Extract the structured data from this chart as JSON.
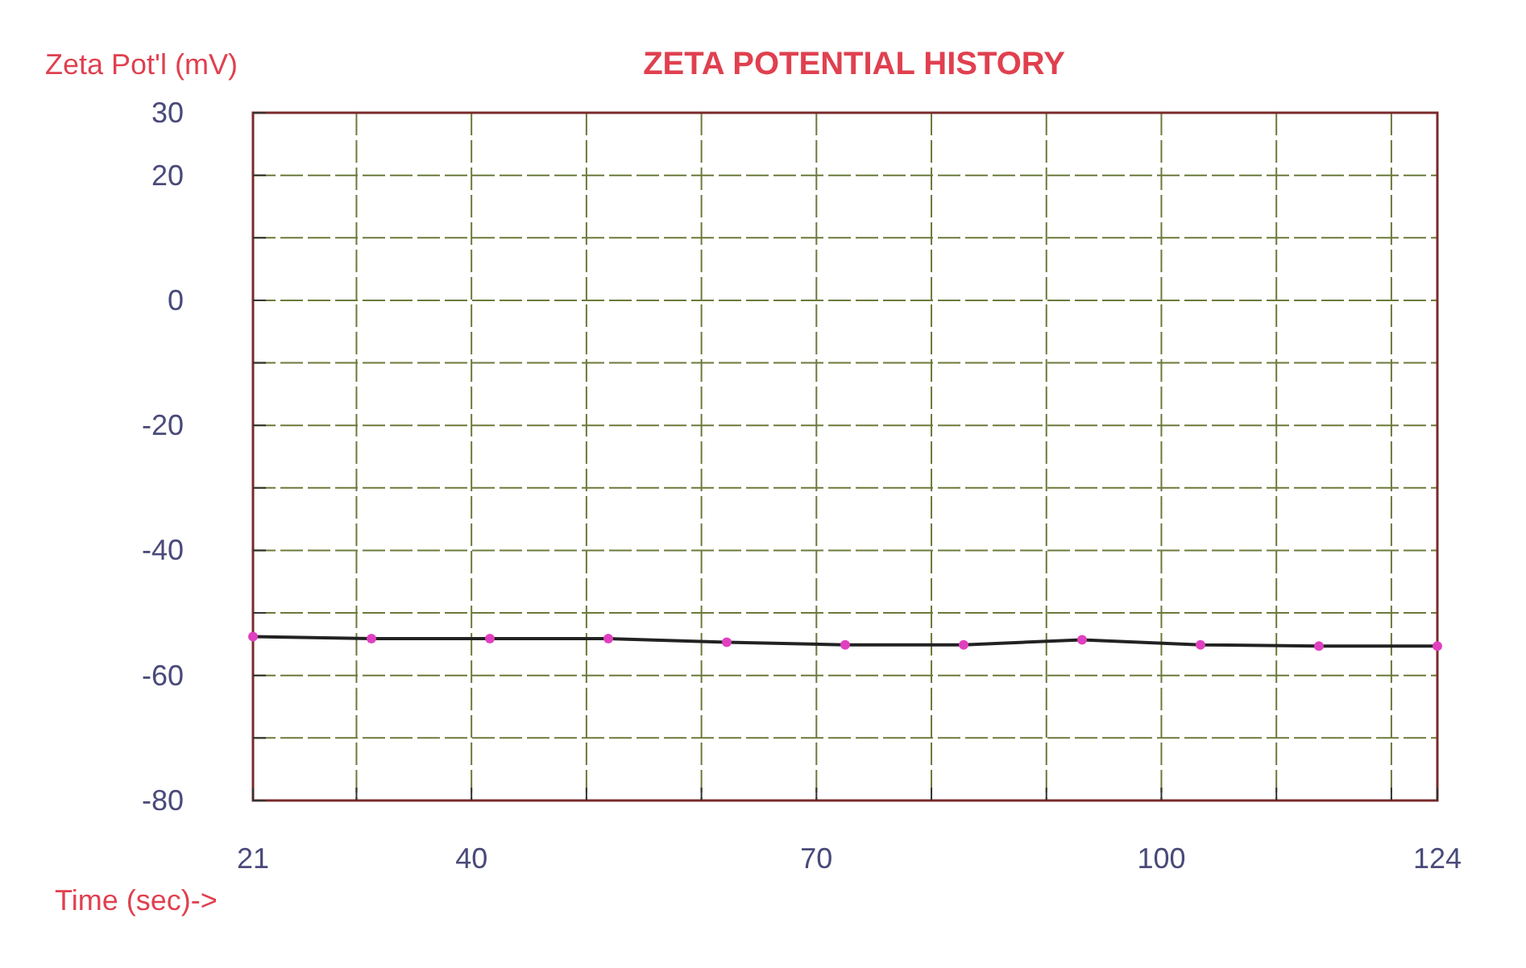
{
  "chart_data": {
    "type": "line",
    "title": "ZETA POTENTIAL HISTORY",
    "ylabel": "Zeta Pot'l (mV)",
    "xlabel": "Time (sec)->",
    "x": [
      21,
      31.3,
      41.6,
      51.9,
      62.2,
      72.5,
      82.8,
      93.1,
      103.4,
      113.7,
      124
    ],
    "series": [
      {
        "type": "line",
        "color": "#222222",
        "marker": "none",
        "values": [
          -53.8,
          -54.1,
          -54.1,
          -54.1,
          -54.7,
          -55.1,
          -55.1,
          -54.3,
          -55.1,
          -55.3,
          -55.3
        ]
      },
      {
        "type": "scatter",
        "color": "#e040c0",
        "marker": "circle",
        "values": [
          -53.8,
          -54.1,
          -54.1,
          -54.1,
          -54.7,
          -55.1,
          -55.1,
          -54.3,
          -55.1,
          -55.3,
          -55.3
        ]
      }
    ],
    "xlim": [
      21,
      124
    ],
    "xticks": [
      21,
      {
        "value": 30,
        "label": null
      },
      40,
      {
        "value": 50,
        "label": null
      },
      {
        "value": 60,
        "label": null
      },
      70,
      {
        "value": 80,
        "label": null
      },
      {
        "value": 90,
        "label": null
      },
      100,
      {
        "value": 110,
        "label": null
      },
      {
        "value": 120,
        "label": null
      },
      124
    ],
    "ylim": [
      -80,
      30
    ],
    "yticks": [
      30,
      20,
      {
        "value": 10,
        "label": null
      },
      0,
      {
        "value": -10,
        "label": null
      },
      -20,
      {
        "value": -30,
        "label": null
      },
      -40,
      {
        "value": -50,
        "label": null
      },
      -60,
      {
        "value": -70,
        "label": null
      },
      -80
    ],
    "grid": true
  }
}
